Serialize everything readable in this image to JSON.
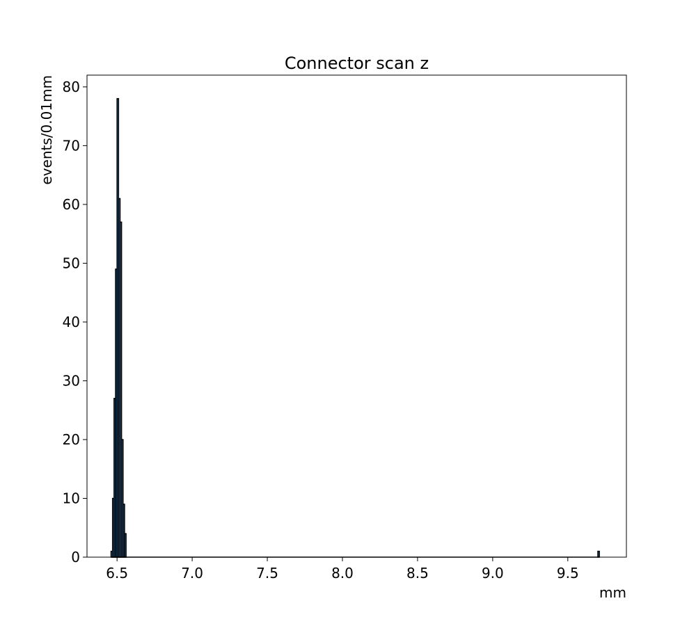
{
  "chart_data": {
    "type": "bar",
    "title": "Connector scan z",
    "xlabel": "mm",
    "ylabel": "events/0.01mm",
    "xlim": [
      6.3,
      9.89
    ],
    "ylim": [
      0,
      82
    ],
    "bin_width": 0.01,
    "grid": false,
    "legend": "none",
    "bar_color": "#1f77b4",
    "edge_color": "#000000",
    "x_ticks": [
      6.5,
      7.0,
      7.5,
      8.0,
      8.5,
      9.0,
      9.5
    ],
    "x_tick_labels": [
      "6.5",
      "7.0",
      "7.5",
      "8.0",
      "8.5",
      "9.0",
      "9.5"
    ],
    "y_ticks": [
      0,
      10,
      20,
      30,
      40,
      50,
      60,
      70,
      80
    ],
    "y_tick_labels": [
      "0",
      "10",
      "20",
      "30",
      "40",
      "50",
      "60",
      "70",
      "80"
    ],
    "bins": [
      {
        "x": 6.46,
        "count": 1
      },
      {
        "x": 6.47,
        "count": 10
      },
      {
        "x": 6.48,
        "count": 27
      },
      {
        "x": 6.49,
        "count": 49
      },
      {
        "x": 6.5,
        "count": 78
      },
      {
        "x": 6.51,
        "count": 61
      },
      {
        "x": 6.52,
        "count": 57
      },
      {
        "x": 6.53,
        "count": 20
      },
      {
        "x": 6.54,
        "count": 9
      },
      {
        "x": 6.55,
        "count": 4
      },
      {
        "x": 9.7,
        "count": 1
      }
    ]
  }
}
